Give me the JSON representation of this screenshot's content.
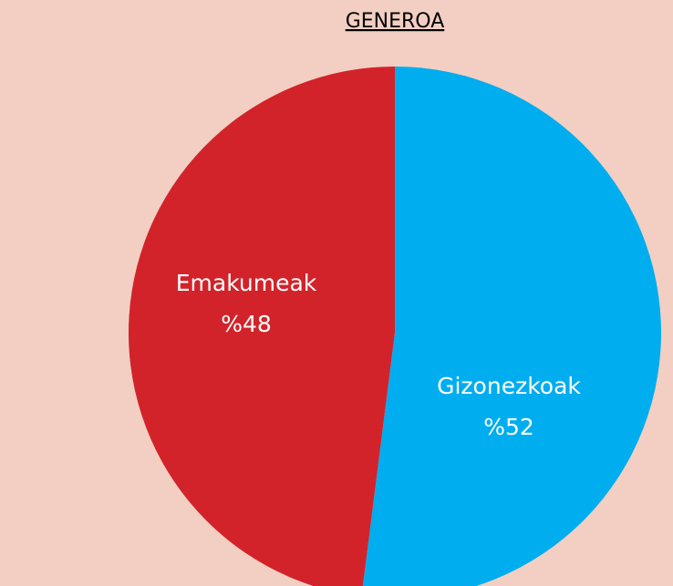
{
  "chart_data": {
    "type": "pie",
    "title": "GENEROA",
    "categories": [
      "Gizonezkoak",
      "Emakumeak"
    ],
    "values": [
      52,
      48
    ],
    "value_labels": [
      "%52",
      "%48"
    ],
    "colors": [
      "#00adef",
      "#d2232a"
    ]
  }
}
